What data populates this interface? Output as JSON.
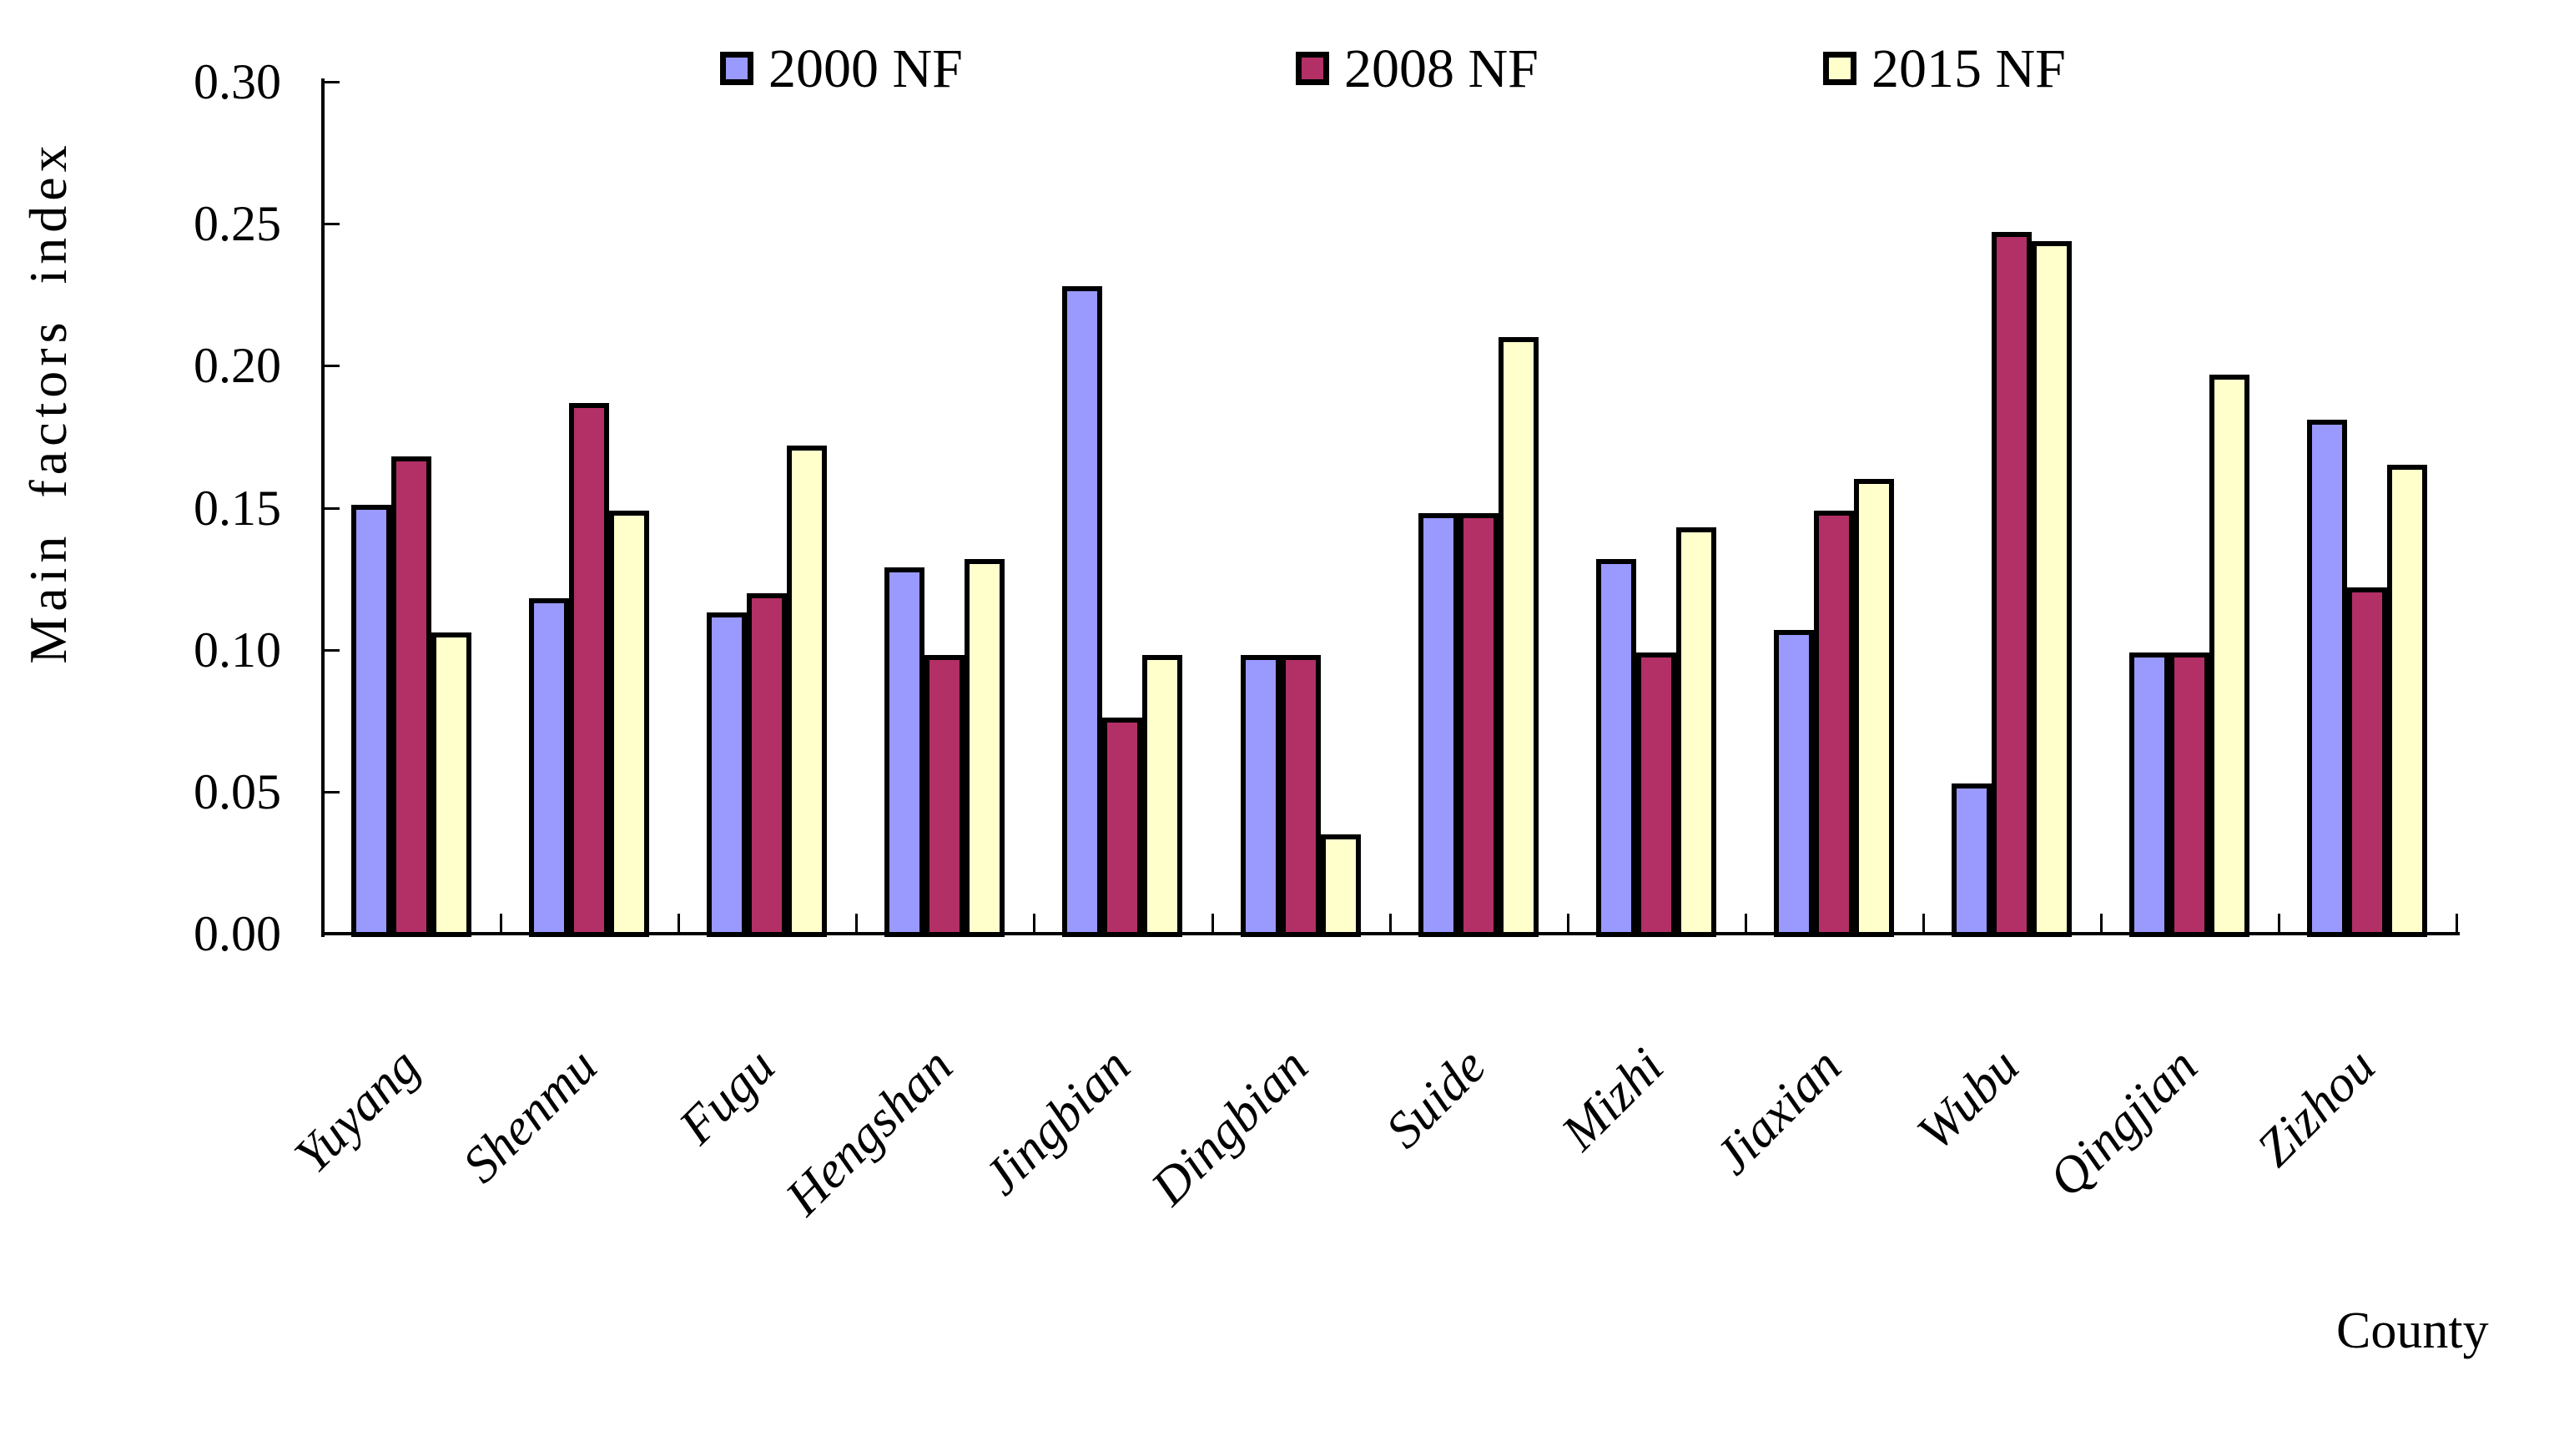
{
  "chart_data": {
    "type": "bar",
    "title": "",
    "ylabel": "Main factors index",
    "xlabel": "County",
    "ylim": [
      0,
      0.3
    ],
    "ytick_step": 0.05,
    "ytick_labels": [
      "0.00",
      "0.05",
      "0.10",
      "0.15",
      "0.20",
      "0.25",
      "0.30"
    ],
    "grid": false,
    "legend_position": "top",
    "background": "#FFFFFF",
    "axis_color": "#000000",
    "categories": [
      "Yuyang",
      "Shenmu",
      "Fugu",
      "Hengshan",
      "Jingbian",
      "Dingbian",
      "Suide",
      "Mizhi",
      "Jiaxian",
      "Wubu",
      "Qingjian",
      "Zizhou"
    ],
    "series": [
      {
        "name": "2000 NF",
        "color": "#9999FE",
        "values": [
          0.151,
          0.118,
          0.113,
          0.129,
          0.228,
          0.098,
          0.148,
          0.132,
          0.107,
          0.053,
          0.099,
          0.181
        ]
      },
      {
        "name": "2008 NF",
        "color": "#B23066",
        "values": [
          0.168,
          0.187,
          0.12,
          0.098,
          0.076,
          0.098,
          0.148,
          0.099,
          0.149,
          0.247,
          0.099,
          0.122
        ]
      },
      {
        "name": "2015 NF",
        "color": "#FFFFCC",
        "values": [
          0.106,
          0.149,
          0.172,
          0.132,
          0.098,
          0.035,
          0.21,
          0.143,
          0.16,
          0.244,
          0.197,
          0.165
        ]
      }
    ]
  }
}
